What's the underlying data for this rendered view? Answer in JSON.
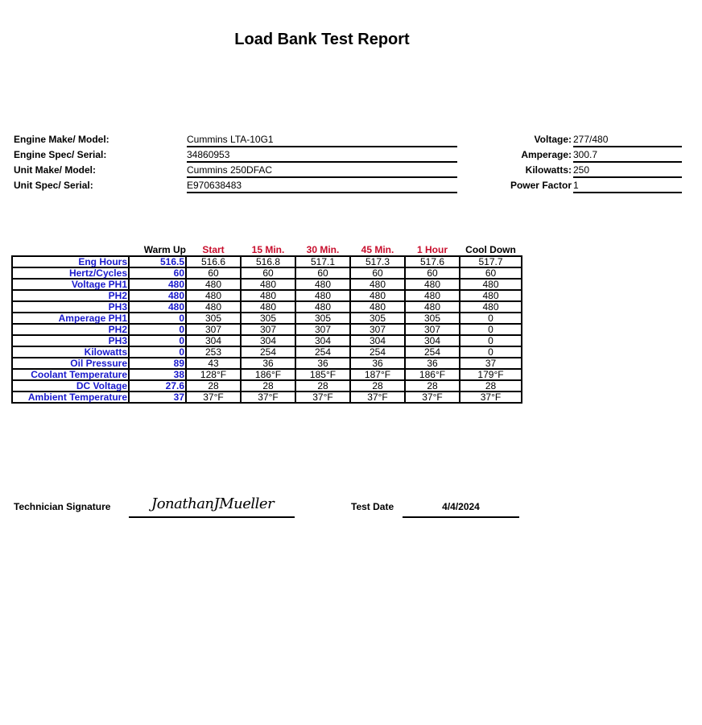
{
  "title": "Load Bank Test Report",
  "info_left": [
    {
      "label": "Engine Make/ Model:",
      "value": "Cummins LTA-10G1"
    },
    {
      "label": "Engine Spec/ Serial:",
      "value": "34860953"
    },
    {
      "label": "Unit Make/ Model:",
      "value": "Cummins 250DFAC"
    },
    {
      "label": "Unit Spec/ Serial:",
      "value": "E970638483"
    }
  ],
  "info_right": [
    {
      "label": "Voltage:",
      "value": "277/480"
    },
    {
      "label": "Amperage:",
      "value": "300.7"
    },
    {
      "label": "Kilowatts:",
      "value": "250"
    },
    {
      "label": "Power Factor",
      "value": "1"
    }
  ],
  "table": {
    "headers": [
      "Warm Up",
      "Start",
      "15 Min.",
      "30 Min.",
      "45 Min.",
      "1 Hour",
      "Cool Down"
    ],
    "header_colors": [
      "#000000",
      "#c8102e",
      "#c8102e",
      "#c8102e",
      "#c8102e",
      "#c8102e",
      "#000000"
    ],
    "rows": [
      {
        "label": "Eng Hours",
        "values": [
          "516.5",
          "516.6",
          "516.8",
          "517.1",
          "517.3",
          "517.6",
          "517.7"
        ]
      },
      {
        "label": "Hertz/Cycles",
        "values": [
          "60",
          "60",
          "60",
          "60",
          "60",
          "60",
          "60"
        ]
      },
      {
        "label": "Voltage PH1",
        "values": [
          "480",
          "480",
          "480",
          "480",
          "480",
          "480",
          "480"
        ]
      },
      {
        "label": "PH2",
        "values": [
          "480",
          "480",
          "480",
          "480",
          "480",
          "480",
          "480"
        ]
      },
      {
        "label": "PH3",
        "values": [
          "480",
          "480",
          "480",
          "480",
          "480",
          "480",
          "480"
        ]
      },
      {
        "label": "Amperage PH1",
        "values": [
          "0",
          "305",
          "305",
          "305",
          "305",
          "305",
          "0"
        ]
      },
      {
        "label": "PH2",
        "values": [
          "0",
          "307",
          "307",
          "307",
          "307",
          "307",
          "0"
        ]
      },
      {
        "label": "PH3",
        "values": [
          "0",
          "304",
          "304",
          "304",
          "304",
          "304",
          "0"
        ]
      },
      {
        "label": "Kilowatts ",
        "values": [
          "0",
          "253",
          "254",
          "254",
          "254",
          "254",
          "0"
        ]
      },
      {
        "label": "Oil Pressure",
        "values": [
          "89",
          "43",
          "36",
          "36",
          "36",
          "36",
          "37"
        ]
      },
      {
        "label": "Coolant Temperature",
        "values": [
          "38",
          "128°F",
          "186°F",
          "185°F",
          "187°F",
          "186°F",
          "179°F"
        ]
      },
      {
        "label": "DC Voltage",
        "values": [
          "27.6",
          "28",
          "28",
          "28",
          "28",
          "28",
          "28"
        ]
      },
      {
        "label": "Ambient Temperature",
        "values": [
          "37",
          "37°F",
          "37°F",
          "37°F",
          "37°F",
          "37°F",
          "37°F"
        ]
      }
    ]
  },
  "footer": {
    "signature_label": "Technician Signature",
    "signature": "JonathanJMueller",
    "date_label": "Test Date",
    "date": "4/4/2024"
  }
}
